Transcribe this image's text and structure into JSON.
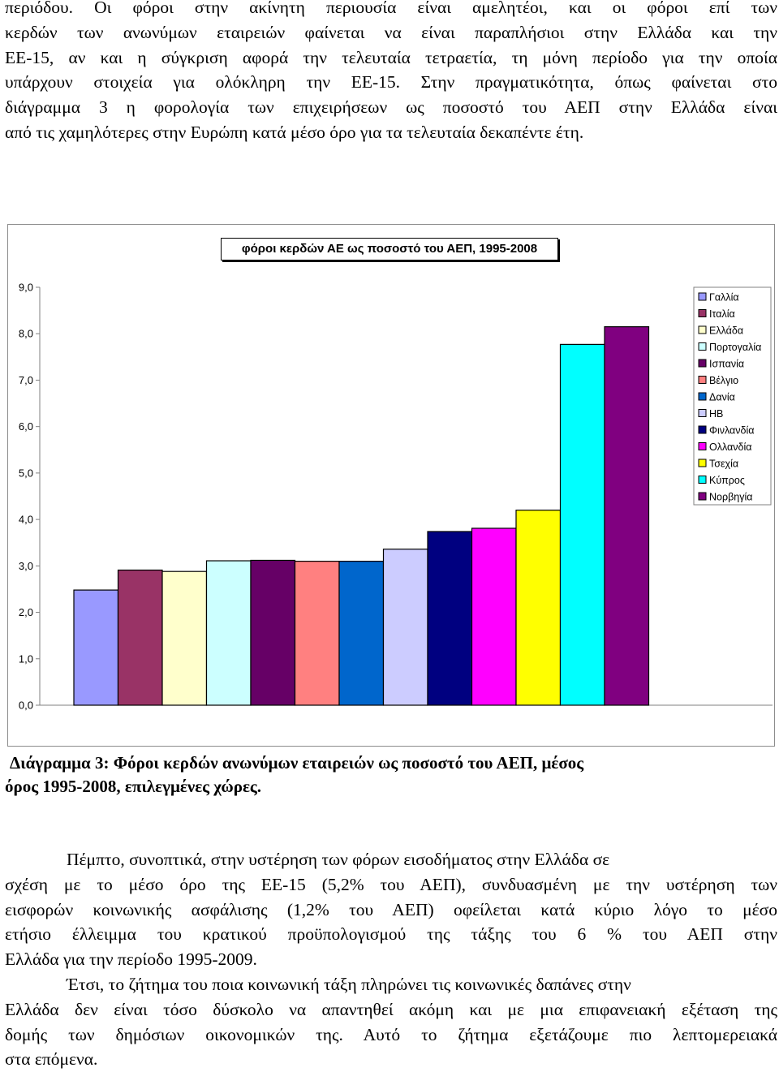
{
  "top_paragraph": [
    "περιόδου. Οι φόροι στην ακίνητη περιουσία είναι αμελητέοι, και οι φόροι επί των",
    "κερδών των ανωνύμων εταιρειών φαίνεται να είναι παραπλήσιοι στην Ελλάδα και την",
    "ΕΕ-15, αν και η σύγκριση αφορά την τελευταία τετραετία, τη μόνη περίοδο για την οποία",
    "υπάρχουν στοιχεία για ολόκληρη την ΕΕ-15. Στην πραγματικότητα, όπως φαίνεται στο",
    "διάγραμμα 3 η φορολογία των επιχειρήσεων ως ποσοστό του ΑΕΠ στην Ελλάδα είναι",
    "από τις χαμηλότερες στην Ευρώπη κατά μέσο όρο για τα τελευταία δεκαπέντε έτη."
  ],
  "chart_data": {
    "type": "bar",
    "title": "φόροι κερδών ΑΕ ως ποσοστό του ΑΕΠ, 1995-2008",
    "ylim": [
      0,
      9
    ],
    "yticks": [
      "0,0",
      "1,0",
      "2,0",
      "3,0",
      "4,0",
      "5,0",
      "6,0",
      "7,0",
      "8,0",
      "9,0"
    ],
    "grid": false,
    "legend_position": "right",
    "series": [
      {
        "name": "Γαλλία",
        "value": 2.48,
        "color": "#9999ff"
      },
      {
        "name": "Ιταλία",
        "value": 2.91,
        "color": "#993366"
      },
      {
        "name": "Ελλάδα",
        "value": 2.88,
        "color": "#ffffcc"
      },
      {
        "name": "Πορτογαλία",
        "value": 3.11,
        "color": "#ccffff"
      },
      {
        "name": "Ισπανία",
        "value": 3.12,
        "color": "#660066"
      },
      {
        "name": "Βέλγιο",
        "value": 3.1,
        "color": "#ff8080"
      },
      {
        "name": "Δανία",
        "value": 3.1,
        "color": "#0066cc"
      },
      {
        "name": "ΗΒ",
        "value": 3.36,
        "color": "#ccccff"
      },
      {
        "name": "Φινλανδία",
        "value": 3.74,
        "color": "#000080"
      },
      {
        "name": "Ολλανδία",
        "value": 3.81,
        "color": "#ff00ff"
      },
      {
        "name": "Τσεχία",
        "value": 4.2,
        "color": "#ffff00"
      },
      {
        "name": "Κύπρος",
        "value": 7.77,
        "color": "#00ffff"
      },
      {
        "name": "Νορβηγία",
        "value": 8.15,
        "color": "#800080"
      }
    ]
  },
  "caption": [
    "Διάγραμμα 3: Φόροι κερδών ανωνύμων εταιρειών ως ποσοστό του ΑΕΠ, μέσος",
    "όρος 1995-2008, επιλεγμένες χώρες."
  ],
  "paragraph_2": [
    "Πέμπτο, συνοπτικά, στην υστέρηση των φόρων εισοδήματος στην Ελλάδα σε",
    "σχέση με το μέσο όρο της ΕΕ-15 (5,2% του ΑΕΠ), συνδυασμένη με την υστέρηση των",
    "εισφορών κοινωνικής ασφάλισης (1,2% του ΑΕΠ) οφείλεται κατά κύριο λόγο το μέσο",
    "ετήσιο έλλειμμα του κρατικού προϋπολογισμού της τάξης του 6 % του ΑΕΠ στην",
    "Ελλάδα για την περίοδο 1995-2009."
  ],
  "paragraph_3": [
    "Έτσι, το ζήτημα του ποια κοινωνική τάξη πληρώνει τις κοινωνικές δαπάνες στην",
    "Ελλάδα δεν είναι τόσο δύσκολο να απαντηθεί ακόμη και με μια επιφανειακή εξέταση της",
    "δομής των δημόσιων οικονομικών της. Αυτό το ζήτημα εξετάζουμε πιο λεπτομερειακά",
    "στα επόμενα."
  ]
}
